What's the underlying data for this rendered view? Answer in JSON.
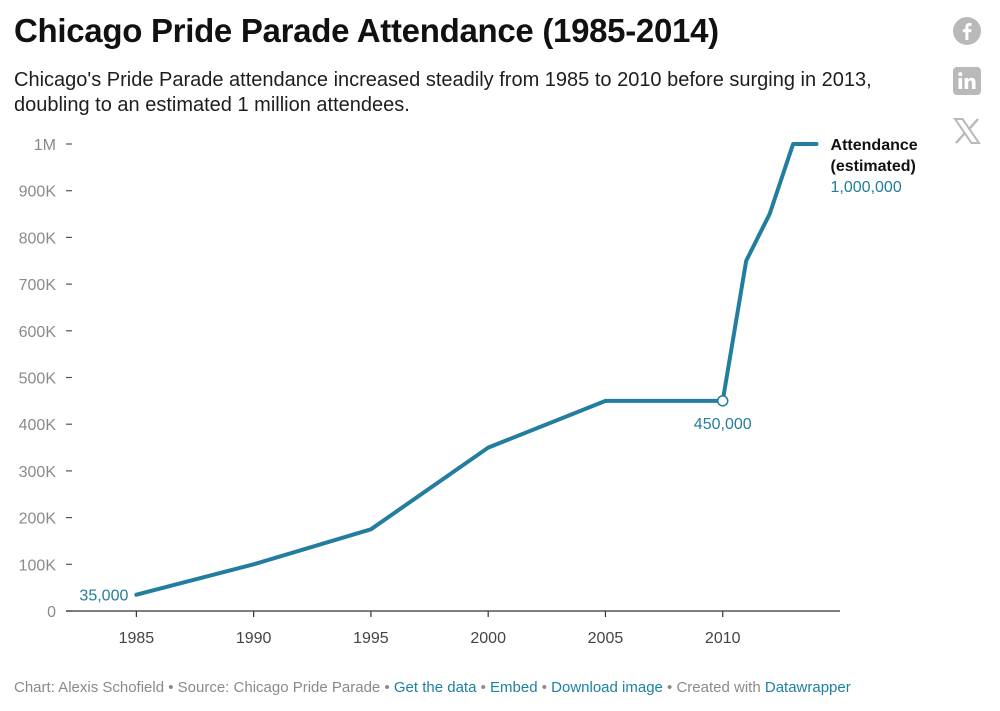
{
  "header": {
    "title": "Chicago Pride Parade Attendance (1985-2014)",
    "subtitle": "Chicago's Pride Parade attendance increased steadily from 1985 to 2010 before surging in 2013, doubling to an estimated 1 million attendees."
  },
  "share": {
    "icons": [
      "facebook-icon",
      "linkedin-icon",
      "x-icon"
    ],
    "color": "#b9b9b9"
  },
  "chart_data": {
    "type": "line",
    "title": "Chicago Pride Parade Attendance (1985-2014)",
    "xlabel": "",
    "ylabel": "",
    "xlim": [
      1982,
      2015
    ],
    "ylim": [
      0,
      1000000
    ],
    "x_ticks": [
      1985,
      1990,
      1995,
      2000,
      2005,
      2010
    ],
    "x_tick_labels": [
      "1985",
      "1990",
      "1995",
      "2000",
      "2005",
      "2010"
    ],
    "y_ticks": [
      0,
      100000,
      200000,
      300000,
      400000,
      500000,
      600000,
      700000,
      800000,
      900000,
      1000000
    ],
    "y_tick_labels": [
      "0",
      "100K",
      "200K",
      "300K",
      "400K",
      "500K",
      "600K",
      "700K",
      "800K",
      "900K",
      "1M"
    ],
    "color": "#227d9e",
    "series": [
      {
        "name": "Attendance (estimated)",
        "name_lines": [
          "Attendance",
          "(estimated)"
        ],
        "x": [
          1985,
          1990,
          1995,
          2000,
          2005,
          2010,
          2011,
          2012,
          2013,
          2014
        ],
        "values": [
          35000,
          100000,
          175000,
          350000,
          450000,
          450000,
          750000,
          850000,
          1000000,
          1000000
        ]
      }
    ],
    "annotations": [
      {
        "x": 1985,
        "y": 35000,
        "text": "35,000"
      },
      {
        "x": 2010,
        "y": 450000,
        "text": "450,000"
      },
      {
        "x": 2014,
        "y": 1000000,
        "text": "1,000,000"
      }
    ]
  },
  "footer": {
    "prefix": "Chart: Alexis Schofield • Source: Chicago Pride Parade • ",
    "get_data": "Get the data",
    "sep1": " • ",
    "embed": "Embed",
    "sep2": "  • ",
    "download": "Download image",
    "sep3": " • Created with ",
    "datawrapper": "Datawrapper"
  }
}
